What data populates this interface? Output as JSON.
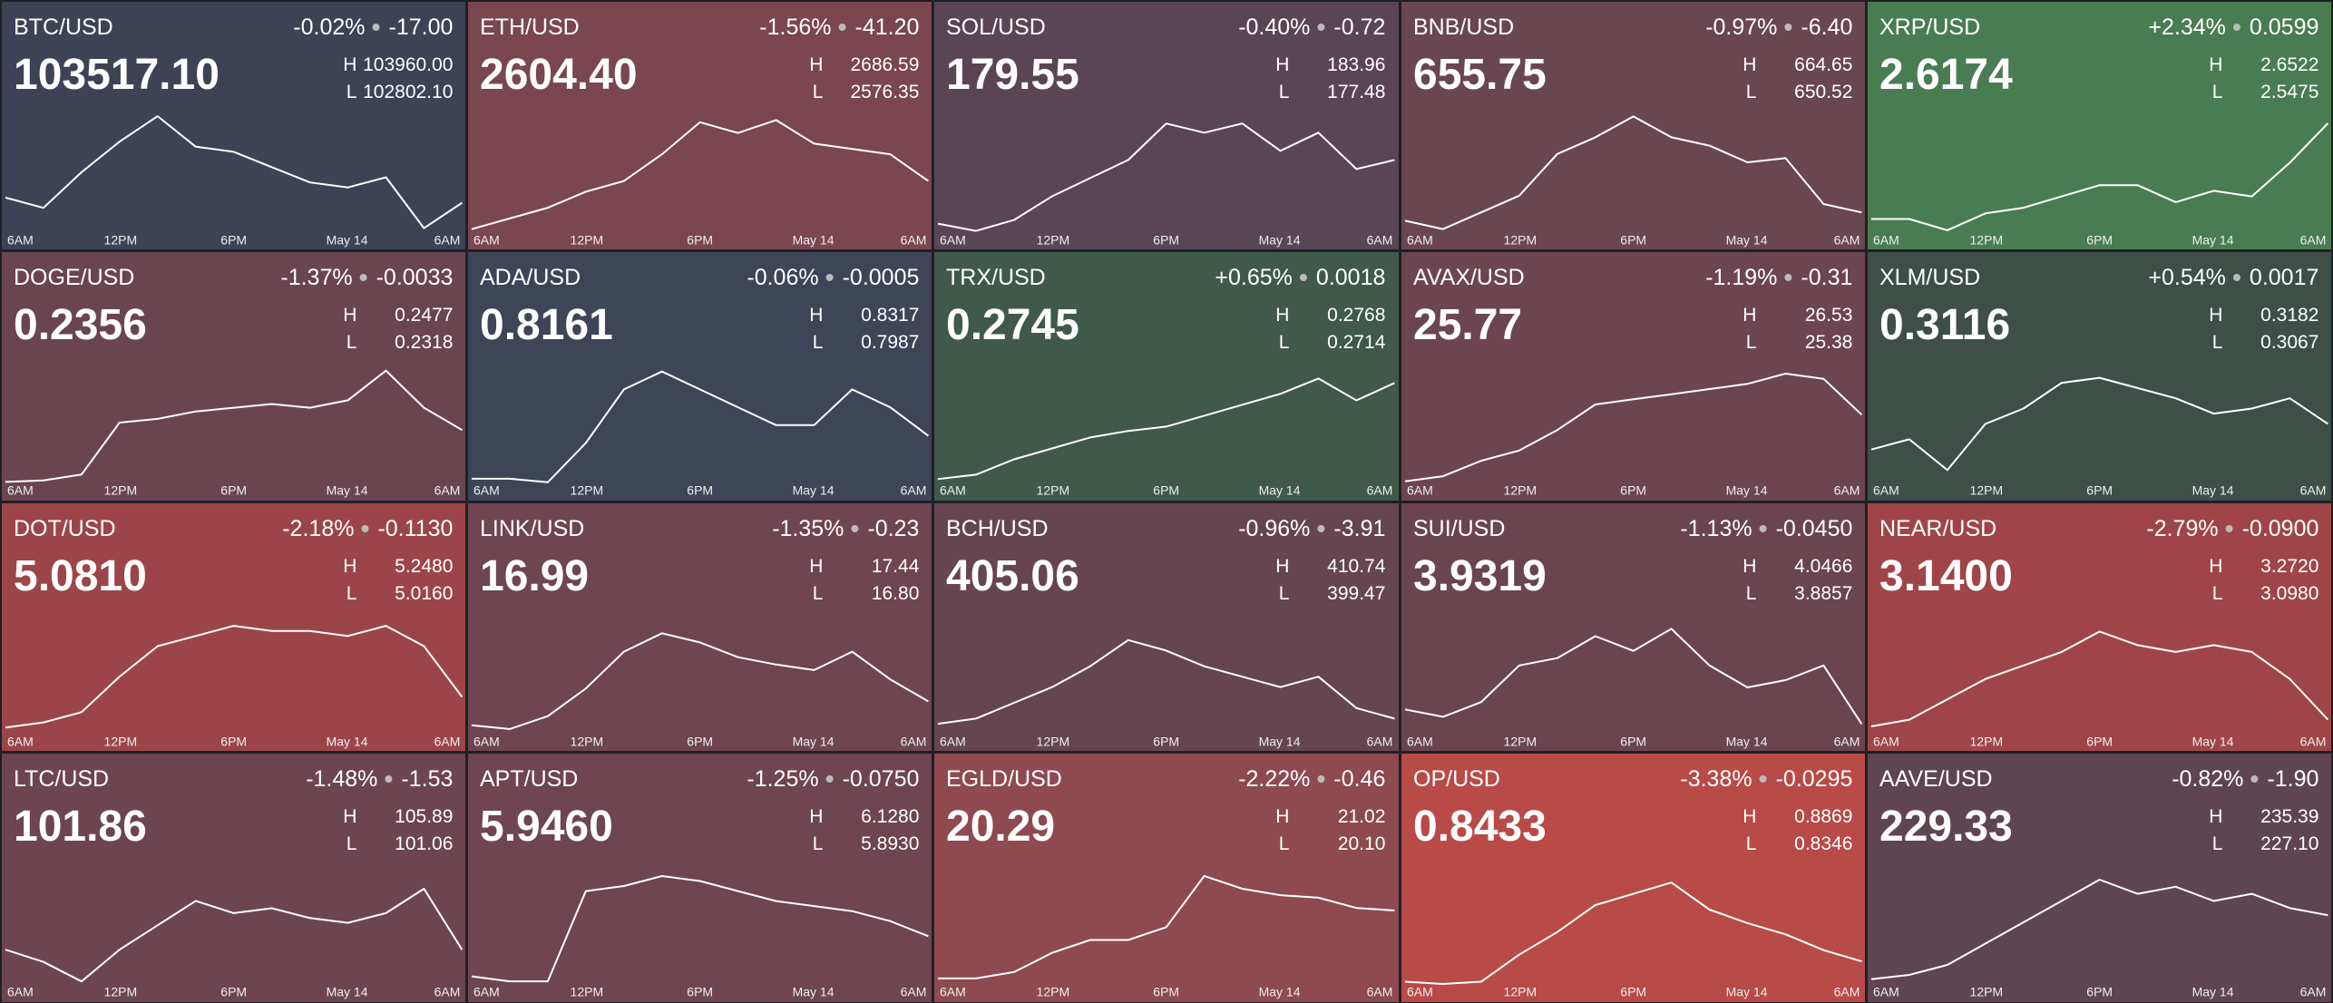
{
  "high_label": "H",
  "low_label": "L",
  "x_labels": [
    "6AM",
    "12PM",
    "6PM",
    "May 14",
    "6AM"
  ],
  "tiles": [
    {
      "pair": "BTC/USD",
      "change_pct": "-0.02%",
      "change": "-17.00",
      "price": "103517.10",
      "high": "103960.00",
      "low": "102802.10",
      "color": "#3d4354",
      "ylim": [
        102802.1,
        103960.0
      ],
      "values": [
        103150,
        103050,
        103400,
        103700,
        103950,
        103650,
        103600,
        103450,
        103300,
        103250,
        103350,
        102850,
        103100
      ]
    },
    {
      "pair": "ETH/USD",
      "change_pct": "-1.56%",
      "change": "-41.20",
      "price": "2604.40",
      "high": "2686.59",
      "low": "2576.35",
      "color": "#7a4650",
      "ylim": [
        2576.35,
        2686.59
      ],
      "values": [
        2580,
        2590,
        2600,
        2615,
        2625,
        2650,
        2680,
        2670,
        2682,
        2660,
        2655,
        2650,
        2625
      ]
    },
    {
      "pair": "SOL/USD",
      "change_pct": "-0.40%",
      "change": "-0.72",
      "price": "179.55",
      "high": "183.96",
      "low": "177.48",
      "color": "#5a4554",
      "ylim": [
        177.48,
        183.96
      ],
      "values": [
        178,
        177.6,
        178.2,
        179.5,
        180.5,
        181.5,
        183.5,
        183,
        183.5,
        182,
        183,
        181,
        181.5
      ]
    },
    {
      "pair": "BNB/USD",
      "change_pct": "-0.97%",
      "change": "-6.40",
      "price": "655.75",
      "high": "664.65",
      "low": "650.52",
      "color": "#6a4651",
      "ylim": [
        650.52,
        664.65
      ],
      "values": [
        652,
        651,
        653,
        655,
        660,
        662,
        664.5,
        662,
        661,
        659,
        659.5,
        654,
        653
      ]
    },
    {
      "pair": "XRP/USD",
      "change_pct": "+2.34%",
      "change": "0.0599",
      "price": "2.6174",
      "high": "2.6522",
      "low": "2.5475",
      "color": "#4a7c52",
      "ylim": [
        2.5475,
        2.6522
      ],
      "values": [
        2.56,
        2.56,
        2.55,
        2.565,
        2.57,
        2.58,
        2.59,
        2.59,
        2.575,
        2.585,
        2.58,
        2.61,
        2.645
      ]
    },
    {
      "pair": "DOGE/USD",
      "change_pct": "-1.37%",
      "change": "-0.0033",
      "price": "0.2356",
      "high": "0.2477",
      "low": "0.2318",
      "color": "#6a4550",
      "ylim": [
        0.2318,
        0.2477
      ],
      "values": [
        0.232,
        0.2322,
        0.233,
        0.24,
        0.2405,
        0.2415,
        0.242,
        0.2425,
        0.242,
        0.243,
        0.247,
        0.242,
        0.239
      ]
    },
    {
      "pair": "ADA/USD",
      "change_pct": "-0.06%",
      "change": "-0.0005",
      "price": "0.8161",
      "high": "0.8317",
      "low": "0.7987",
      "color": "#3e4556",
      "ylim": [
        0.7987,
        0.8317
      ],
      "values": [
        0.8,
        0.8,
        0.799,
        0.81,
        0.825,
        0.83,
        0.825,
        0.82,
        0.815,
        0.815,
        0.825,
        0.82,
        0.812
      ]
    },
    {
      "pair": "TRX/USD",
      "change_pct": "+0.65%",
      "change": "0.0018",
      "price": "0.2745",
      "high": "0.2768",
      "low": "0.2714",
      "color": "#3f5a4a",
      "ylim": [
        0.2714,
        0.2768
      ],
      "values": [
        0.2716,
        0.2718,
        0.2725,
        0.273,
        0.2735,
        0.2738,
        0.274,
        0.2745,
        0.275,
        0.2755,
        0.2762,
        0.2752,
        0.276
      ]
    },
    {
      "pair": "AVAX/USD",
      "change_pct": "-1.19%",
      "change": "-0.31",
      "price": "25.77",
      "high": "26.53",
      "low": "25.38",
      "color": "#6c4550",
      "ylim": [
        25.38,
        26.53
      ],
      "values": [
        25.4,
        25.45,
        25.6,
        25.7,
        25.9,
        26.15,
        26.2,
        26.25,
        26.3,
        26.35,
        26.45,
        26.4,
        26.05
      ]
    },
    {
      "pair": "XLM/USD",
      "change_pct": "+0.54%",
      "change": "0.0017",
      "price": "0.3116",
      "high": "0.3182",
      "low": "0.3067",
      "color": "#3f4f48",
      "ylim": [
        0.3067,
        0.3182
      ],
      "values": [
        0.31,
        0.311,
        0.308,
        0.3125,
        0.314,
        0.3165,
        0.317,
        0.316,
        0.315,
        0.3135,
        0.314,
        0.315,
        0.3125
      ]
    },
    {
      "pair": "DOT/USD",
      "change_pct": "-2.18%",
      "change": "-0.1130",
      "price": "5.0810",
      "high": "5.2480",
      "low": "5.0160",
      "color": "#9c4548",
      "ylim": [
        5.016,
        5.248
      ],
      "values": [
        5.03,
        5.04,
        5.06,
        5.13,
        5.19,
        5.21,
        5.23,
        5.22,
        5.22,
        5.21,
        5.23,
        5.19,
        5.09
      ]
    },
    {
      "pair": "LINK/USD",
      "change_pct": "-1.35%",
      "change": "-0.23",
      "price": "16.99",
      "high": "17.44",
      "low": "16.80",
      "color": "#6e4550",
      "ylim": [
        16.8,
        17.44
      ],
      "values": [
        16.85,
        16.83,
        16.9,
        17.05,
        17.25,
        17.35,
        17.3,
        17.22,
        17.18,
        17.15,
        17.25,
        17.1,
        16.98
      ]
    },
    {
      "pair": "BCH/USD",
      "change_pct": "-0.96%",
      "change": "-3.91",
      "price": "405.06",
      "high": "410.74",
      "low": "399.47",
      "color": "#664551",
      "ylim": [
        399.47,
        410.74
      ],
      "values": [
        400.5,
        401,
        402.5,
        404,
        406,
        408.5,
        407.5,
        406,
        405,
        404,
        405,
        402,
        401
      ]
    },
    {
      "pair": "SUI/USD",
      "change_pct": "-1.13%",
      "change": "-0.0450",
      "price": "3.9319",
      "high": "4.0466",
      "low": "3.8857",
      "color": "#6a4550",
      "ylim": [
        3.8857,
        4.0466
      ],
      "values": [
        3.92,
        3.91,
        3.93,
        3.98,
        3.99,
        4.02,
        4.0,
        4.03,
        3.98,
        3.95,
        3.96,
        3.98,
        3.9
      ]
    },
    {
      "pair": "NEAR/USD",
      "change_pct": "-2.79%",
      "change": "-0.0900",
      "price": "3.1400",
      "high": "3.2720",
      "low": "3.0980",
      "color": "#a04547",
      "ylim": [
        3.098,
        3.272
      ],
      "values": [
        3.11,
        3.12,
        3.15,
        3.18,
        3.2,
        3.22,
        3.25,
        3.23,
        3.22,
        3.23,
        3.22,
        3.18,
        3.12
      ]
    },
    {
      "pair": "LTC/USD",
      "change_pct": "-1.48%",
      "change": "-1.53",
      "price": "101.86",
      "high": "105.89",
      "low": "101.06",
      "color": "#6d4550",
      "ylim": [
        101.06,
        105.89
      ],
      "values": [
        102.5,
        102,
        101.2,
        102.5,
        103.5,
        104.5,
        104,
        104.2,
        103.8,
        103.6,
        104,
        105,
        102.5
      ]
    },
    {
      "pair": "APT/USD",
      "change_pct": "-1.25%",
      "change": "-0.0750",
      "price": "5.9460",
      "high": "6.1280",
      "low": "5.8930",
      "color": "#6e4550",
      "ylim": [
        5.893,
        6.128
      ],
      "values": [
        5.91,
        5.9,
        5.9,
        6.08,
        6.09,
        6.11,
        6.1,
        6.08,
        6.06,
        6.05,
        6.04,
        6.02,
        5.99
      ]
    },
    {
      "pair": "EGLD/USD",
      "change_pct": "-2.22%",
      "change": "-0.46",
      "price": "20.29",
      "high": "21.02",
      "low": "20.10",
      "color": "#8e4a4f",
      "ylim": [
        20.1,
        21.02
      ],
      "values": [
        20.15,
        20.15,
        20.2,
        20.35,
        20.45,
        20.45,
        20.55,
        20.95,
        20.85,
        20.8,
        20.78,
        20.7,
        20.68
      ]
    },
    {
      "pair": "OP/USD",
      "change_pct": "-3.38%",
      "change": "-0.0295",
      "price": "0.8433",
      "high": "0.8869",
      "low": "0.8346",
      "color": "#b84a48",
      "ylim": [
        0.8346,
        0.8869
      ],
      "values": [
        0.836,
        0.835,
        0.836,
        0.848,
        0.858,
        0.87,
        0.875,
        0.88,
        0.868,
        0.862,
        0.857,
        0.85,
        0.845
      ]
    },
    {
      "pair": "AAVE/USD",
      "change_pct": "-0.82%",
      "change": "-1.90",
      "price": "229.33",
      "high": "235.39",
      "low": "227.10",
      "color": "#5f4552",
      "ylim": [
        227.1,
        235.39
      ],
      "values": [
        227.5,
        227.8,
        228.5,
        230,
        231.5,
        233,
        234.5,
        233.5,
        234,
        233,
        233.5,
        232.5,
        232
      ]
    }
  ]
}
